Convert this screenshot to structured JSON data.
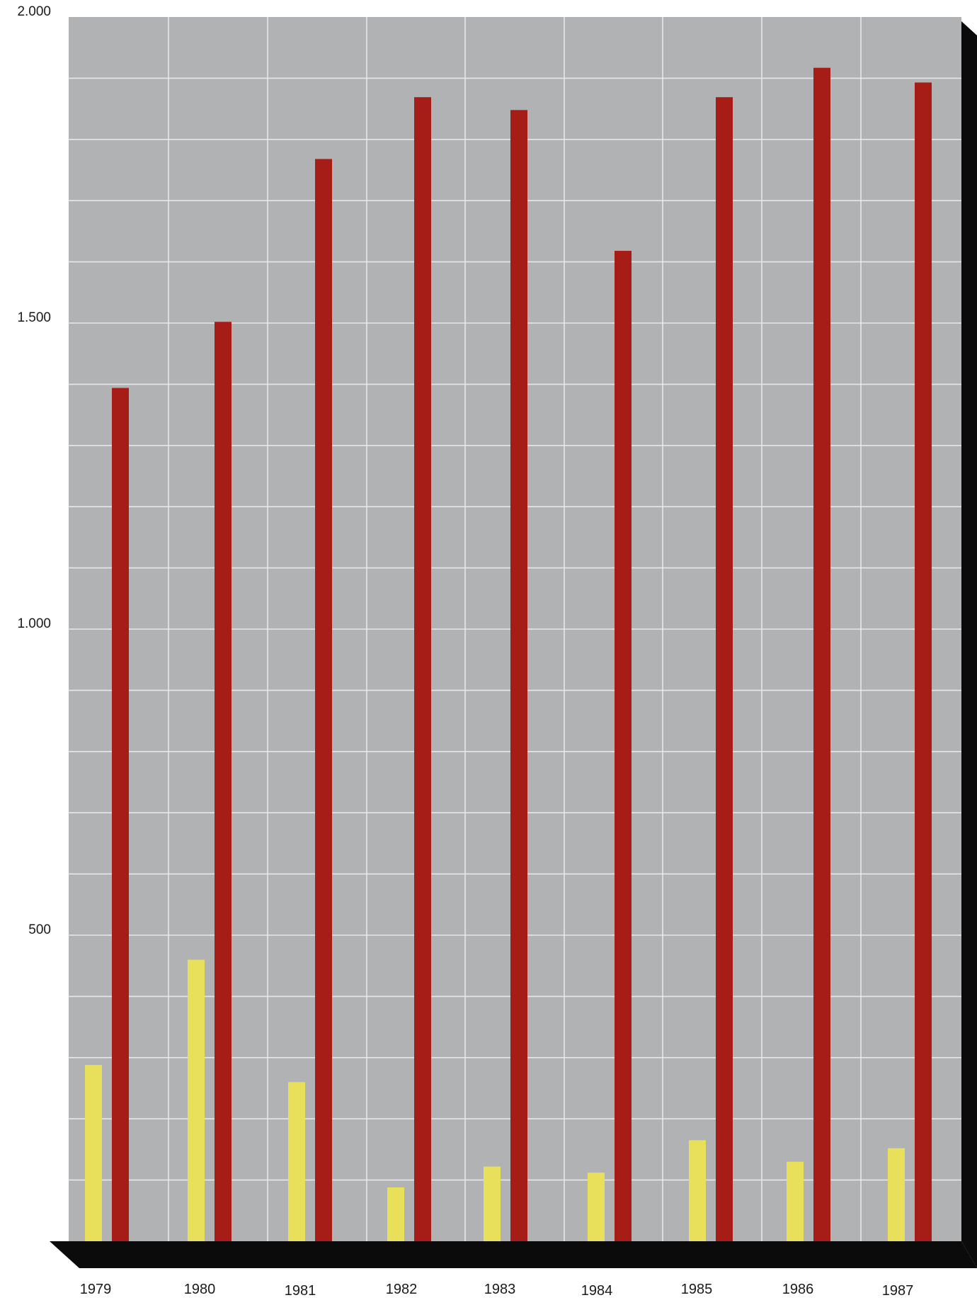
{
  "chart_data": {
    "type": "bar",
    "title": "",
    "xlabel": "",
    "ylabel": "",
    "ylim": [
      0,
      2000
    ],
    "y_ticks": [
      "2.000",
      "1.500",
      "1.000",
      "500"
    ],
    "y_tick_values": [
      2000,
      1500,
      1000,
      500
    ],
    "grid": true,
    "categories": [
      "1979",
      "1980",
      "1981",
      "1982",
      "1983",
      "1984",
      "1985",
      "1986",
      "1987"
    ],
    "series": [
      {
        "color": "#e8e05a",
        "values": [
          288,
          460,
          260,
          88,
          122,
          112,
          165,
          130,
          152
        ]
      },
      {
        "color": "#a51d16",
        "values": [
          1394,
          1502,
          1768,
          1869,
          1848,
          1618,
          1869,
          1917,
          1893
        ]
      }
    ],
    "colors": {
      "plot_background": "#b0b2b4",
      "gridline": "#e6e7e8",
      "base_and_side": "#0b0b0b"
    }
  }
}
